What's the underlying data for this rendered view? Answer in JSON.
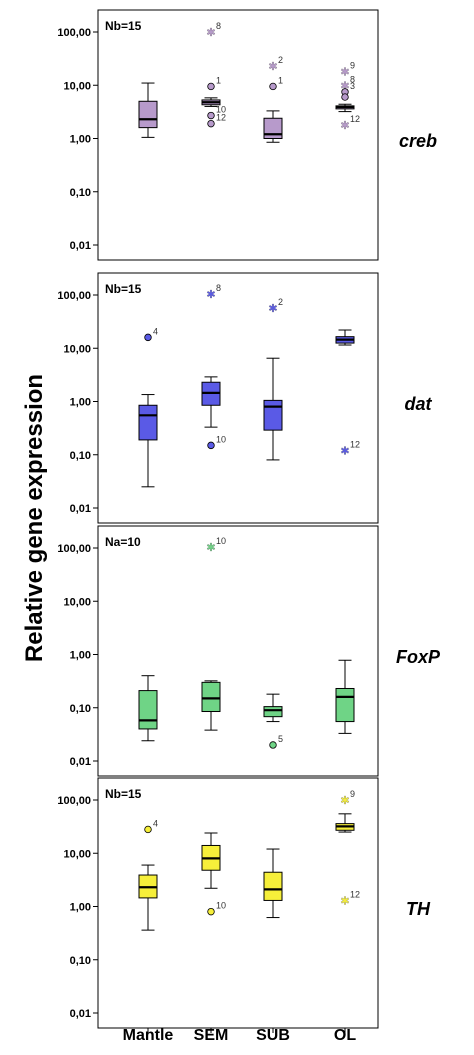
{
  "chart_data": {
    "type": "boxplot",
    "ylabel": "Relative gene expression",
    "categories": [
      "Mantle",
      "SEM",
      "SUB",
      "OL"
    ],
    "y_scale": "log",
    "ylim": [
      0.01,
      100
    ],
    "y_ticks": [
      "0,01",
      "0,10",
      "1,00",
      "10,00",
      "100,00"
    ],
    "panels": [
      {
        "gene": "creb",
        "n_label": "Nb=15",
        "color": "#b79acb",
        "boxes": [
          {
            "category": "Mantle",
            "min": 1.05,
            "q1": 1.6,
            "median": 2.3,
            "q3": 5.0,
            "max": 11.0
          },
          {
            "category": "SEM",
            "min": 4.0,
            "q1": 4.3,
            "median": 4.8,
            "q3": 5.3,
            "max": 5.8
          },
          {
            "category": "SUB",
            "min": 0.85,
            "q1": 1.0,
            "median": 1.2,
            "q3": 2.4,
            "max": 3.3
          },
          {
            "category": "OL",
            "min": 3.2,
            "q1": 3.6,
            "median": 3.9,
            "q3": 4.1,
            "max": 4.4
          }
        ],
        "outliers": [
          {
            "category": "SEM",
            "value": 100,
            "label": "8",
            "shape": "star"
          },
          {
            "category": "SEM",
            "value": 9.5,
            "label": "1",
            "shape": "circle"
          },
          {
            "category": "SEM",
            "value": 2.7,
            "label": "10",
            "shape": "circle"
          },
          {
            "category": "SEM",
            "value": 1.9,
            "label": "12",
            "shape": "circle"
          },
          {
            "category": "SUB",
            "value": 23,
            "label": "2",
            "shape": "star"
          },
          {
            "category": "SUB",
            "value": 9.5,
            "label": "1",
            "shape": "circle"
          },
          {
            "category": "OL",
            "value": 18,
            "label": "9",
            "shape": "star"
          },
          {
            "category": "OL",
            "value": 10,
            "label": "8",
            "shape": "star"
          },
          {
            "category": "OL",
            "value": 7.5,
            "label": "3",
            "shape": "circle"
          },
          {
            "category": "OL",
            "value": 6.0,
            "label": "",
            "shape": "circle"
          },
          {
            "category": "OL",
            "value": 1.8,
            "label": "12",
            "shape": "star"
          }
        ]
      },
      {
        "gene": "dat",
        "n_label": "Nb=15",
        "color": "#5a5ae6",
        "boxes": [
          {
            "category": "Mantle",
            "min": 0.025,
            "q1": 0.19,
            "median": 0.55,
            "q3": 0.85,
            "max": 1.35
          },
          {
            "category": "SEM",
            "min": 0.33,
            "q1": 0.85,
            "median": 1.45,
            "q3": 2.3,
            "max": 2.9
          },
          {
            "category": "SUB",
            "min": 0.08,
            "q1": 0.29,
            "median": 0.8,
            "q3": 1.05,
            "max": 6.5
          },
          {
            "category": "OL",
            "min": 11.5,
            "q1": 12.5,
            "median": 14.5,
            "q3": 16.5,
            "max": 22
          }
        ],
        "outliers": [
          {
            "category": "Mantle",
            "value": 16,
            "label": "4",
            "shape": "circle"
          },
          {
            "category": "SEM",
            "value": 105,
            "label": "8",
            "shape": "star"
          },
          {
            "category": "SEM",
            "value": 0.15,
            "label": "10",
            "shape": "circle"
          },
          {
            "category": "SUB",
            "value": 57,
            "label": "2",
            "shape": "star"
          },
          {
            "category": "OL",
            "value": 0.12,
            "label": "12",
            "shape": "star"
          }
        ]
      },
      {
        "gene": "FoxP",
        "n_label": "Na=10",
        "color": "#6fd486",
        "boxes": [
          {
            "category": "Mantle",
            "min": 0.024,
            "q1": 0.04,
            "median": 0.058,
            "q3": 0.21,
            "max": 0.4
          },
          {
            "category": "SEM",
            "min": 0.038,
            "q1": 0.085,
            "median": 0.15,
            "q3": 0.3,
            "max": 0.32
          },
          {
            "category": "SUB",
            "min": 0.055,
            "q1": 0.068,
            "median": 0.09,
            "q3": 0.105,
            "max": 0.18
          },
          {
            "category": "OL",
            "min": 0.033,
            "q1": 0.055,
            "median": 0.16,
            "q3": 0.23,
            "max": 0.78
          }
        ],
        "outliers": [
          {
            "category": "SEM",
            "value": 105,
            "label": "10",
            "shape": "star"
          },
          {
            "category": "SUB",
            "value": 0.02,
            "label": "5",
            "shape": "circle"
          }
        ]
      },
      {
        "gene": "TH",
        "n_label": "Nb=15",
        "color": "#f6ef3a",
        "boxes": [
          {
            "category": "Mantle",
            "min": 0.36,
            "q1": 1.45,
            "median": 2.3,
            "q3": 3.9,
            "max": 6.0
          },
          {
            "category": "SEM",
            "min": 2.2,
            "q1": 4.8,
            "median": 8.0,
            "q3": 14,
            "max": 24
          },
          {
            "category": "SUB",
            "min": 0.62,
            "q1": 1.3,
            "median": 2.1,
            "q3": 4.4,
            "max": 12
          },
          {
            "category": "OL",
            "min": 25,
            "q1": 27,
            "median": 32,
            "q3": 36,
            "max": 55
          }
        ],
        "outliers": [
          {
            "category": "Mantle",
            "value": 28,
            "label": "4",
            "shape": "circle"
          },
          {
            "category": "SEM",
            "value": 0.8,
            "label": "10",
            "shape": "circle"
          },
          {
            "category": "OL",
            "value": 100,
            "label": "9",
            "shape": "star"
          },
          {
            "category": "OL",
            "value": 1.3,
            "label": "12",
            "shape": "star"
          }
        ]
      }
    ]
  }
}
